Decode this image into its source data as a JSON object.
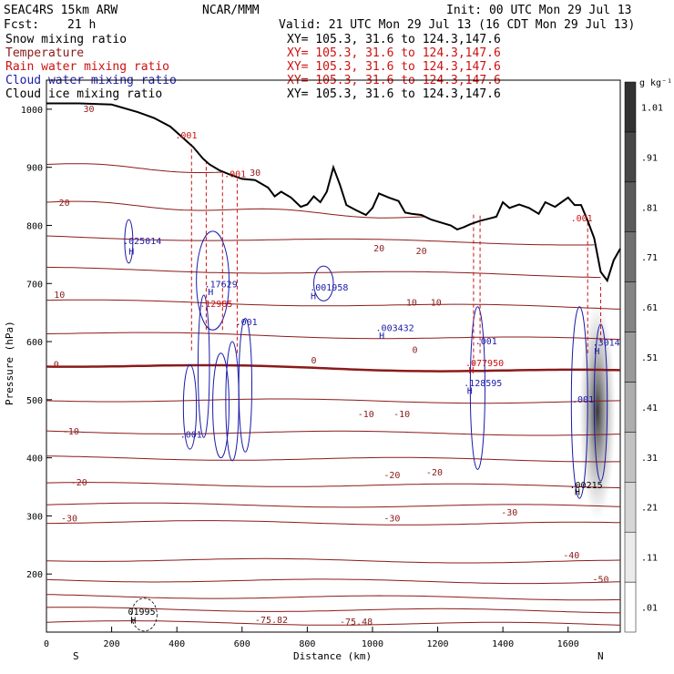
{
  "header": {
    "model": "SEAC4RS 15km ARW",
    "center": "NCAR/MMM",
    "init": "Init: 00 UTC Mon 29 Jul 13",
    "fcst_label": "Fcst:",
    "fcst_value": "21 h",
    "valid": "Valid: 21 UTC Mon 29 Jul 13 (16 CDT Mon 29 Jul 13)"
  },
  "fields": [
    {
      "name": "Snow mixing ratio",
      "xy": "XY= 105.3, 31.6 to 124.3,147.6",
      "color": "#000000"
    },
    {
      "name": "Temperature",
      "xy": "XY= 105.3, 31.6 to 124.3,147.6",
      "color": "#8b1a1a"
    },
    {
      "name": "Rain water mixing ratio",
      "xy": "XY= 105.3, 31.6 to 124.3,147.6",
      "color": "#cc1111"
    },
    {
      "name": "Cloud water mixing ratio",
      "xy": "XY= 105.3, 31.6 to 124.3,147.6",
      "color": "#1a1aa8"
    },
    {
      "name": "Cloud ice mixing ratio",
      "xy": "XY= 105.3, 31.6 to 124.3,147.6",
      "color": "#000000"
    }
  ],
  "chart_data": {
    "type": "cross-section",
    "xlabel": "Distance (km)",
    "ylabel": "Pressure (hPa)",
    "xlim": [
      0,
      1760
    ],
    "ylim": [
      1050,
      100
    ],
    "x_ticks": [
      0,
      200,
      400,
      600,
      800,
      1000,
      1200,
      1400,
      1600
    ],
    "y_ticks": [
      200,
      300,
      400,
      500,
      600,
      700,
      800,
      900,
      1000
    ],
    "endpoints": {
      "left": "S",
      "right": "N"
    },
    "colorbar": {
      "unit": "g kg⁻¹",
      "levels": [
        0.01,
        0.11,
        0.21,
        0.31,
        0.41,
        0.51,
        0.61,
        0.71,
        0.81,
        0.91,
        1.01
      ],
      "labels": [
        ".01",
        ".11",
        ".21",
        ".31",
        ".41",
        ".51",
        ".61",
        ".71",
        ".81",
        ".91",
        "1.01"
      ]
    },
    "terrain": [
      [
        0,
        1010
      ],
      [
        100,
        1010
      ],
      [
        200,
        1008
      ],
      [
        280,
        995
      ],
      [
        330,
        985
      ],
      [
        380,
        970
      ],
      [
        420,
        950
      ],
      [
        450,
        935
      ],
      [
        480,
        915
      ],
      [
        500,
        905
      ],
      [
        530,
        895
      ],
      [
        560,
        888
      ],
      [
        600,
        880
      ],
      [
        640,
        878
      ],
      [
        680,
        865
      ],
      [
        700,
        850
      ],
      [
        720,
        858
      ],
      [
        750,
        848
      ],
      [
        780,
        832
      ],
      [
        800,
        836
      ],
      [
        820,
        850
      ],
      [
        840,
        840
      ],
      [
        860,
        858
      ],
      [
        880,
        900
      ],
      [
        900,
        870
      ],
      [
        920,
        835
      ],
      [
        950,
        826
      ],
      [
        980,
        818
      ],
      [
        1000,
        830
      ],
      [
        1020,
        855
      ],
      [
        1050,
        848
      ],
      [
        1080,
        842
      ],
      [
        1100,
        822
      ],
      [
        1120,
        820
      ],
      [
        1150,
        818
      ],
      [
        1180,
        810
      ],
      [
        1210,
        805
      ],
      [
        1240,
        800
      ],
      [
        1260,
        793
      ],
      [
        1280,
        797
      ],
      [
        1300,
        802
      ],
      [
        1330,
        808
      ],
      [
        1360,
        812
      ],
      [
        1380,
        815
      ],
      [
        1400,
        840
      ],
      [
        1420,
        830
      ],
      [
        1450,
        836
      ],
      [
        1480,
        830
      ],
      [
        1510,
        820
      ],
      [
        1530,
        840
      ],
      [
        1560,
        832
      ],
      [
        1600,
        848
      ],
      [
        1620,
        835
      ],
      [
        1640,
        835
      ],
      [
        1660,
        808
      ],
      [
        1680,
        778
      ],
      [
        1700,
        720
      ],
      [
        1720,
        705
      ],
      [
        1740,
        740
      ],
      [
        1760,
        760
      ]
    ],
    "isotherms": [
      {
        "t": -70,
        "p": 117
      },
      {
        "t": -60,
        "p": 140
      },
      {
        "t": -55,
        "p": 162
      },
      {
        "t": -50,
        "p": 190
      },
      {
        "t": -40,
        "p": 225
      },
      {
        "t": -30,
        "p": 290
      },
      {
        "t": -25,
        "p": 320
      },
      {
        "t": -20,
        "p": 355
      },
      {
        "t": -15,
        "p": 400
      },
      {
        "t": -10,
        "p": 445
      },
      {
        "t": -5,
        "p": 500
      },
      {
        "t": 0,
        "p": 560
      },
      {
        "t": 5,
        "p": 615
      },
      {
        "t": 10,
        "p": 670
      },
      {
        "t": 15,
        "p": 725
      },
      {
        "t": 20,
        "p": 780
      },
      {
        "t": 25,
        "p": 840
      },
      {
        "t": 30,
        "p": 905
      }
    ],
    "temp_labels": [
      {
        "text": "-75.82",
        "x": 690,
        "p": 120
      },
      {
        "text": "-75.48",
        "x": 950,
        "p": 117
      },
      {
        "text": "-50",
        "x": 1700,
        "p": 190
      },
      {
        "text": "-40",
        "x": 1610,
        "p": 232
      },
      {
        "text": "-30",
        "x": 70,
        "p": 295
      },
      {
        "text": "-30",
        "x": 1060,
        "p": 295
      },
      {
        "text": "-30",
        "x": 1420,
        "p": 305
      },
      {
        "text": "-20",
        "x": 100,
        "p": 357
      },
      {
        "text": "-20",
        "x": 1060,
        "p": 370
      },
      {
        "text": "-20",
        "x": 1190,
        "p": 374
      },
      {
        "text": "-10",
        "x": 75,
        "p": 445
      },
      {
        "text": "-10",
        "x": 980,
        "p": 475
      },
      {
        "text": "-10",
        "x": 1090,
        "p": 475
      },
      {
        "text": "0",
        "x": 30,
        "p": 560
      },
      {
        "text": "0",
        "x": 820,
        "p": 567
      },
      {
        "text": "0",
        "x": 1130,
        "p": 585
      },
      {
        "text": "10",
        "x": 40,
        "p": 680
      },
      {
        "text": "10",
        "x": 1120,
        "p": 667
      },
      {
        "text": "10",
        "x": 1195,
        "p": 667
      },
      {
        "text": "20",
        "x": 1020,
        "p": 760
      },
      {
        "text": "20",
        "x": 1150,
        "p": 755
      },
      {
        "text": "20",
        "x": 55,
        "p": 838
      },
      {
        "text": "30",
        "x": 640,
        "p": 890
      },
      {
        "text": "30",
        "x": 130,
        "p": 1000
      }
    ],
    "annotations": [
      {
        "text": "H",
        "x": 258,
        "p": 115,
        "color": "#000000"
      },
      {
        "text": "01995",
        "x": 250,
        "p": 130,
        "color": "#000000"
      },
      {
        "text": ".001",
        "x": 410,
        "p": 435,
        "color": "#1a1aa8"
      },
      {
        "text": ".001",
        "x": 580,
        "p": 628,
        "color": "#1a1aa8"
      },
      {
        "text": ".12985",
        "x": 470,
        "p": 660,
        "color": "#cc1111"
      },
      {
        "text": "H",
        "x": 495,
        "p": 680,
        "color": "#1a1aa8"
      },
      {
        "text": ".17629",
        "x": 485,
        "p": 693,
        "color": "#1a1aa8"
      },
      {
        "text": "H",
        "x": 252,
        "p": 750,
        "color": "#1a1aa8"
      },
      {
        "text": ".025014",
        "x": 235,
        "p": 768,
        "color": "#1a1aa8"
      },
      {
        "text": "H",
        "x": 810,
        "p": 673,
        "color": "#1a1aa8"
      },
      {
        "text": ".001958",
        "x": 808,
        "p": 688,
        "color": "#1a1aa8"
      },
      {
        "text": "H",
        "x": 1020,
        "p": 605,
        "color": "#1a1aa8"
      },
      {
        "text": ".003432",
        "x": 1010,
        "p": 618,
        "color": "#1a1aa8"
      },
      {
        "text": "H",
        "x": 1290,
        "p": 510,
        "color": "#1a1aa8"
      },
      {
        "text": ".128595",
        "x": 1280,
        "p": 523,
        "color": "#1a1aa8"
      },
      {
        "text": "H",
        "x": 1295,
        "p": 545,
        "color": "#cc1111"
      },
      {
        "text": ".077950",
        "x": 1285,
        "p": 558,
        "color": "#cc1111"
      },
      {
        "text": ".001",
        "x": 1315,
        "p": 595,
        "color": "#1a1aa8"
      },
      {
        "text": "H",
        "x": 1620,
        "p": 336,
        "color": "#000000"
      },
      {
        "text": ".00215",
        "x": 1605,
        "p": 348,
        "color": "#000000"
      },
      {
        "text": ".001",
        "x": 1612,
        "p": 495,
        "color": "#1a1aa8"
      },
      {
        "text": "H",
        "x": 1680,
        "p": 578,
        "color": "#1a1aa8"
      },
      {
        "text": ".3014",
        "x": 1675,
        "p": 593,
        "color": "#1a1aa8"
      },
      {
        "text": ".001",
        "x": 1608,
        "p": 807,
        "color": "#cc1111"
      },
      {
        "text": ".001",
        "x": 395,
        "p": 950,
        "color": "#cc1111"
      },
      {
        "text": ".001",
        "x": 545,
        "p": 883,
        "color": "#cc1111"
      }
    ]
  }
}
